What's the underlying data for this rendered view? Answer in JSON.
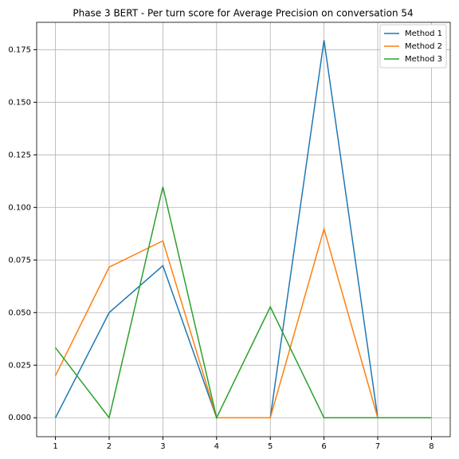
{
  "chart_data": {
    "type": "line",
    "title": "Phase 3 BERT - Per turn score for Average Precision on conversation 54",
    "x": [
      1,
      2,
      3,
      4,
      5,
      6,
      7,
      8
    ],
    "series": [
      {
        "name": "Method 1",
        "color": "#1f77b4",
        "values": [
          0,
          0.05,
          0.0723,
          0,
          0,
          0.1795,
          0,
          0
        ]
      },
      {
        "name": "Method 2",
        "color": "#ff7f0e",
        "values": [
          0.02,
          0.0716,
          0.0841,
          0,
          0,
          0.0898,
          0,
          0
        ]
      },
      {
        "name": "Method 3",
        "color": "#2ca02c",
        "values": [
          0.0333,
          0,
          0.1098,
          0,
          0.0527,
          0,
          0,
          0
        ]
      }
    ],
    "xlim": [
      0.65,
      8.35
    ],
    "ylim": [
      -0.009,
      0.188
    ],
    "xticks": [
      1,
      2,
      3,
      4,
      5,
      6,
      7,
      8
    ],
    "yticks": [
      {
        "value": 0,
        "label": "0.000"
      },
      {
        "value": 0.025,
        "label": "0.025"
      },
      {
        "value": 0.05,
        "label": "0.050"
      },
      {
        "value": 0.075,
        "label": "0.075"
      },
      {
        "value": 0.1,
        "label": "0.100"
      },
      {
        "value": 0.125,
        "label": "0.125"
      },
      {
        "value": 0.15,
        "label": "0.150"
      },
      {
        "value": 0.175,
        "label": "0.175"
      }
    ],
    "grid": true,
    "legend": "upper right"
  }
}
